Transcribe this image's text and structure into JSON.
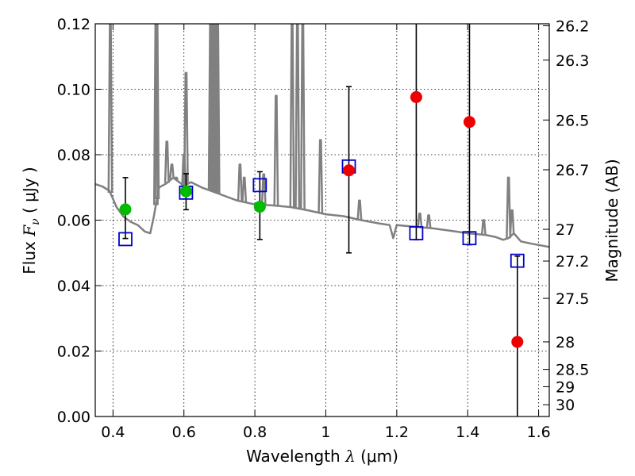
{
  "chart_data": {
    "type": "scatter",
    "xlabel": "Wavelength  λ (μm)",
    "ylabel_left": "Flux  F_ν  ( μJy )",
    "ylabel_left_parts": {
      "prefix": "Flux  ",
      "symbol": "F",
      "subscript": "ν",
      "suffix": "  ( μJy )"
    },
    "xlabel_parts": {
      "prefix": "Wavelength  ",
      "symbol": "λ",
      "suffix": " (μm)"
    },
    "ylabel_right": "Magnitude (AB)",
    "xlim": [
      0.35,
      1.63
    ],
    "ylim": [
      0.0,
      0.12
    ],
    "grid": true,
    "x_ticks": [
      0.4,
      0.6,
      0.8,
      1.0,
      1.2,
      1.4,
      1.6
    ],
    "x_tick_labels": [
      "0.4",
      "0.6",
      "0.8",
      "1",
      "1.2",
      "1.4",
      "1.6"
    ],
    "y_ticks": [
      0.0,
      0.02,
      0.04,
      0.06,
      0.08,
      0.1,
      0.12
    ],
    "y_tick_labels": [
      "0.00",
      "0.02",
      "0.04",
      "0.06",
      "0.08",
      "0.10",
      "0.12"
    ],
    "right_ticks": [
      {
        "label": "26.2",
        "flux": 0.1194
      },
      {
        "label": "26.3",
        "flux": 0.1089
      },
      {
        "label": "26.5",
        "flux": 0.0906
      },
      {
        "label": "26.7",
        "flux": 0.0754
      },
      {
        "label": "27",
        "flux": 0.0572
      },
      {
        "label": "27.2",
        "flux": 0.0475
      },
      {
        "label": "27.5",
        "flux": 0.0361
      },
      {
        "label": "28",
        "flux": 0.0228
      },
      {
        "label": "28.5",
        "flux": 0.0144
      },
      {
        "label": "29",
        "flux": 0.0091
      },
      {
        "label": "30",
        "flux": 0.0036
      }
    ],
    "series": [
      {
        "kind": "observed_detected",
        "color": "#00bb00",
        "points": [
          {
            "x": 0.435,
            "y": 0.0633,
            "ylo": 0.0544,
            "yhi": 0.073
          },
          {
            "x": 0.606,
            "y": 0.0688,
            "ylo": 0.0632,
            "yhi": 0.0742
          },
          {
            "x": 0.814,
            "y": 0.0641,
            "ylo": 0.0541,
            "yhi": 0.0748
          }
        ]
      },
      {
        "kind": "observed_limit",
        "color": "#ee0000",
        "points": [
          {
            "x": 1.065,
            "y": 0.0752,
            "ylo": 0.05,
            "yhi": 0.1008
          },
          {
            "x": 1.255,
            "y": 0.0976,
            "ylo": 0.054,
            "yhi": 0.12
          },
          {
            "x": 1.405,
            "y": 0.09,
            "ylo": 0.0525,
            "yhi": 0.12
          },
          {
            "x": 1.54,
            "y": 0.0228,
            "ylo": 0.0,
            "yhi": 0.049
          }
        ]
      },
      {
        "kind": "model_band_flux",
        "color": "#0000cc",
        "points": [
          {
            "x": 0.435,
            "y": 0.0542
          },
          {
            "x": 0.606,
            "y": 0.0684
          },
          {
            "x": 0.814,
            "y": 0.0707
          },
          {
            "x": 1.065,
            "y": 0.0764
          },
          {
            "x": 1.255,
            "y": 0.056
          },
          {
            "x": 1.405,
            "y": 0.0545
          },
          {
            "x": 1.54,
            "y": 0.0476
          }
        ]
      }
    ],
    "sed_color": "#808080",
    "sed_continuum": [
      [
        0.35,
        0.071
      ],
      [
        0.37,
        0.0703
      ],
      [
        0.39,
        0.069
      ],
      [
        0.41,
        0.064
      ],
      [
        0.43,
        0.061
      ],
      [
        0.45,
        0.0595
      ],
      [
        0.47,
        0.0585
      ],
      [
        0.49,
        0.0565
      ],
      [
        0.505,
        0.056
      ],
      [
        0.515,
        0.061
      ],
      [
        0.53,
        0.07
      ],
      [
        0.55,
        0.0712
      ],
      [
        0.57,
        0.073
      ],
      [
        0.6,
        0.0705
      ],
      [
        0.62,
        0.0716
      ],
      [
        0.65,
        0.07
      ],
      [
        0.7,
        0.068
      ],
      [
        0.75,
        0.066
      ],
      [
        0.8,
        0.0648
      ],
      [
        0.85,
        0.0645
      ],
      [
        0.9,
        0.064
      ],
      [
        0.95,
        0.063
      ],
      [
        1.0,
        0.0618
      ],
      [
        1.05,
        0.0612
      ],
      [
        1.1,
        0.06
      ],
      [
        1.15,
        0.059
      ],
      [
        1.18,
        0.0585
      ],
      [
        1.19,
        0.0545
      ],
      [
        1.2,
        0.0585
      ],
      [
        1.25,
        0.058
      ],
      [
        1.3,
        0.0575
      ],
      [
        1.35,
        0.0568
      ],
      [
        1.4,
        0.056
      ],
      [
        1.45,
        0.0555
      ],
      [
        1.48,
        0.0548
      ],
      [
        1.5,
        0.054
      ],
      [
        1.515,
        0.0545
      ],
      [
        1.53,
        0.056
      ],
      [
        1.55,
        0.0535
      ],
      [
        1.58,
        0.0528
      ],
      [
        1.63,
        0.0518
      ]
    ],
    "sed_lines": [
      {
        "x": 0.3925,
        "y": 0.12
      },
      {
        "x": 0.521,
        "y": 0.12
      },
      {
        "x": 0.524,
        "y": 0.12
      },
      {
        "x": 0.552,
        "y": 0.084
      },
      {
        "x": 0.566,
        "y": 0.077
      },
      {
        "x": 0.578,
        "y": 0.073
      },
      {
        "x": 0.6,
        "y": 0.08
      },
      {
        "x": 0.606,
        "y": 0.105
      },
      {
        "x": 0.675,
        "y": 0.12
      },
      {
        "x": 0.68,
        "y": 0.12
      },
      {
        "x": 0.685,
        "y": 0.12
      },
      {
        "x": 0.69,
        "y": 0.12
      },
      {
        "x": 0.695,
        "y": 0.12
      },
      {
        "x": 0.758,
        "y": 0.077
      },
      {
        "x": 0.77,
        "y": 0.073
      },
      {
        "x": 0.825,
        "y": 0.074
      },
      {
        "x": 0.86,
        "y": 0.098
      },
      {
        "x": 0.905,
        "y": 0.12
      },
      {
        "x": 0.92,
        "y": 0.12
      },
      {
        "x": 0.935,
        "y": 0.12
      },
      {
        "x": 0.985,
        "y": 0.0845
      },
      {
        "x": 1.095,
        "y": 0.066
      },
      {
        "x": 1.265,
        "y": 0.062
      },
      {
        "x": 1.29,
        "y": 0.0615
      },
      {
        "x": 1.445,
        "y": 0.06
      },
      {
        "x": 1.515,
        "y": 0.073
      },
      {
        "x": 1.525,
        "y": 0.063
      }
    ]
  }
}
